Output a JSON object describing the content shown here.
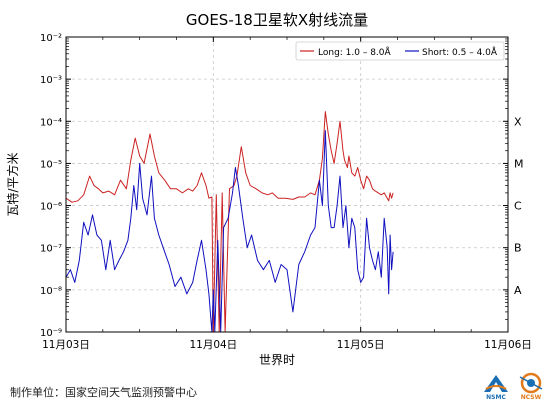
{
  "footer": {
    "credit": "制作单位：国家空间天气监测预警中心",
    "logo_left_caption": "NSMC",
    "logo_right_caption": "NCSW"
  },
  "colors": {
    "long_series": "#cc2222",
    "short_series": "#1010c0",
    "grid": "#c8c8c8",
    "logo_blue": "#1a6fb4",
    "logo_orange": "#e07a1a"
  },
  "chart_data": {
    "type": "line",
    "title": "GOES-18卫星软X射线流量",
    "xlabel": "世界时",
    "ylabel": "瓦特/平方米",
    "y_scale": "log",
    "ylim": [
      1e-09,
      0.01
    ],
    "y_tick_labels": [
      "10⁻⁹",
      "10⁻⁸",
      "10⁻⁷",
      "10⁻⁶",
      "10⁻⁵",
      "10⁻⁴",
      "10⁻³",
      "10⁻²"
    ],
    "x_unit": "days",
    "xlim": [
      0,
      3
    ],
    "x_tick_labels": [
      "11月03日",
      "11月04日",
      "11月05日",
      "11月06日"
    ],
    "grid": true,
    "legend_position": "top-right",
    "class_labels": [
      "A",
      "B",
      "C",
      "M",
      "X"
    ],
    "series": [
      {
        "name": "Long: 1.0 – 8.0Å",
        "x": [
          0,
          0.04,
          0.08,
          0.12,
          0.16,
          0.19,
          0.22,
          0.25,
          0.29,
          0.33,
          0.37,
          0.41,
          0.44,
          0.47,
          0.5,
          0.53,
          0.57,
          0.6,
          0.63,
          0.67,
          0.71,
          0.75,
          0.79,
          0.83,
          0.86,
          0.89,
          0.92,
          0.95,
          0.97,
          0.99,
          1.0,
          1.02,
          1.04,
          1.06,
          1.08,
          1.11,
          1.14,
          1.16,
          1.19,
          1.22,
          1.25,
          1.29,
          1.33,
          1.37,
          1.4,
          1.44,
          1.49,
          1.54,
          1.58,
          1.62,
          1.66,
          1.69,
          1.72,
          1.74,
          1.76,
          1.78,
          1.8,
          1.82,
          1.84,
          1.86,
          1.88,
          1.89,
          1.91,
          1.92,
          1.94,
          1.96,
          1.98,
          2.0,
          2.02,
          2.04,
          2.06,
          2.08,
          2.1,
          2.12,
          2.14,
          2.16,
          2.18,
          2.19,
          2.2,
          2.21,
          2.22
        ],
        "values": [
          1.5e-06,
          1.2e-06,
          1.3e-06,
          1.8e-06,
          5e-06,
          3e-06,
          2.5e-06,
          2e-06,
          2.2e-06,
          1.8e-06,
          4e-06,
          2.5e-06,
          1.2e-05,
          4e-05,
          1.5e-05,
          1e-05,
          5e-05,
          1.5e-05,
          6e-06,
          4e-06,
          2.5e-06,
          2.5e-06,
          2e-06,
          2.5e-06,
          2.2e-06,
          3e-06,
          6e-06,
          3e-06,
          1.5e-06,
          1.6e-06,
          1e-09,
          1.8e-06,
          1e-09,
          2e-06,
          1e-09,
          2.5e-06,
          3e-06,
          5e-06,
          2.5e-05,
          6e-06,
          3e-06,
          2.5e-06,
          2e-06,
          1.8e-06,
          2e-06,
          1.5e-06,
          1.5e-06,
          1.4e-06,
          1.6e-06,
          1.6e-06,
          2e-06,
          1.8e-06,
          4e-06,
          1.3e-05,
          0.00017,
          5e-05,
          2e-05,
          1e-05,
          3e-05,
          0.0001,
          2e-05,
          1.2e-05,
          8e-06,
          1.5e-05,
          6e-06,
          5e-06,
          8e-06,
          4e-06,
          2.5e-06,
          5e-06,
          4e-06,
          2.5e-06,
          2.2e-06,
          2e-06,
          1.8e-06,
          2e-06,
          1.5e-06,
          1.3e-06,
          2e-06,
          1.5e-06,
          2e-06
        ]
      },
      {
        "name": "Short: 0.5 – 4.0Å",
        "x": [
          0,
          0.03,
          0.06,
          0.09,
          0.12,
          0.15,
          0.18,
          0.21,
          0.24,
          0.27,
          0.3,
          0.33,
          0.36,
          0.39,
          0.42,
          0.44,
          0.46,
          0.48,
          0.5,
          0.52,
          0.55,
          0.58,
          0.6,
          0.63,
          0.66,
          0.7,
          0.74,
          0.78,
          0.82,
          0.86,
          0.89,
          0.92,
          0.95,
          0.97,
          0.99,
          1.0,
          1.01,
          1.03,
          1.05,
          1.07,
          1.1,
          1.13,
          1.15,
          1.17,
          1.2,
          1.23,
          1.26,
          1.3,
          1.34,
          1.38,
          1.42,
          1.46,
          1.5,
          1.54,
          1.58,
          1.62,
          1.66,
          1.69,
          1.72,
          1.74,
          1.76,
          1.78,
          1.8,
          1.82,
          1.84,
          1.86,
          1.88,
          1.9,
          1.92,
          1.94,
          1.96,
          1.98,
          2.0,
          2.02,
          2.04,
          2.06,
          2.08,
          2.1,
          2.12,
          2.14,
          2.16,
          2.18,
          2.19,
          2.2,
          2.21,
          2.22
        ],
        "values": [
          2e-08,
          3e-08,
          1.5e-08,
          5e-08,
          4e-07,
          2e-07,
          6e-07,
          2e-07,
          1.5e-07,
          3e-08,
          1.5e-07,
          3e-08,
          5e-08,
          8e-08,
          1.5e-07,
          5e-07,
          3e-06,
          8e-07,
          1e-05,
          1.5e-06,
          6e-07,
          5e-06,
          5e-07,
          2e-07,
          1e-07,
          4e-08,
          1.2e-08,
          2e-08,
          8e-09,
          1.5e-08,
          5e-08,
          1.5e-07,
          3e-08,
          8e-09,
          1e-09,
          1e-08,
          1e-09,
          1.5e-07,
          1e-09,
          3e-07,
          5e-07,
          2e-06,
          8e-06,
          3e-06,
          5e-07,
          1e-07,
          2e-07,
          5e-08,
          3e-08,
          5e-08,
          1.5e-08,
          4e-08,
          3e-08,
          3e-09,
          4e-08,
          8e-08,
          2e-07,
          3e-07,
          4e-06,
          1e-06,
          6e-05,
          1e-06,
          3e-07,
          3e-07,
          1e-06,
          5e-06,
          3e-07,
          1e-06,
          1e-07,
          5e-07,
          3e-07,
          3e-08,
          1.5e-08,
          2e-08,
          5e-07,
          1e-07,
          5e-08,
          3e-08,
          8e-08,
          2e-08,
          5e-07,
          1e-07,
          8e-09,
          2e-07,
          3e-08,
          8e-08
        ]
      }
    ]
  }
}
